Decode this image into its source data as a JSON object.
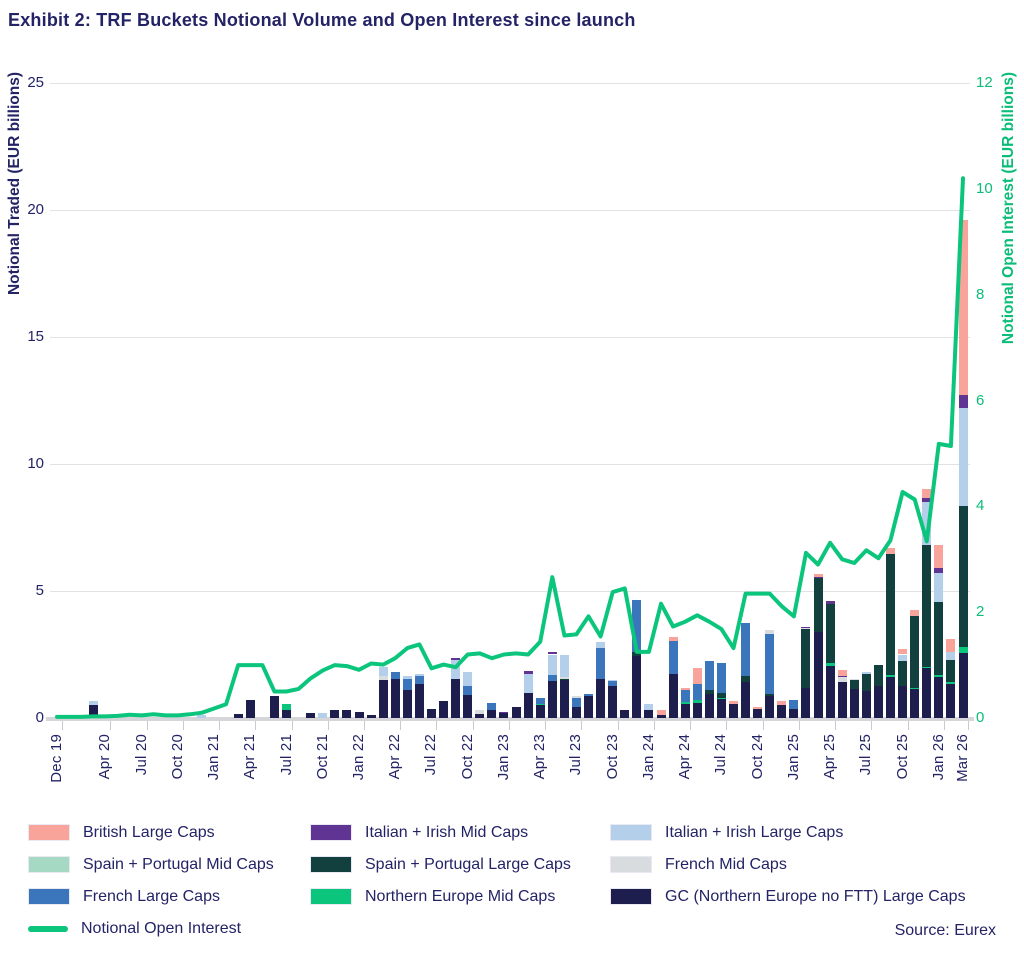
{
  "header": {
    "title": "Exhibit 2: TRF Buckets Notional Volume and Open Interest since launch"
  },
  "source_label": "Source: Eurex",
  "colors": {
    "british": "#F9A49A",
    "italian_irish_mid": "#5F3492",
    "italian_irish_large": "#B4CFE9",
    "spain_portugal_mid": "#A5D9C3",
    "spain_portugal_large": "#11403E",
    "french_mid": "#D9DCDF",
    "french_large": "#3B76BC",
    "northern_europe_mid": "#0BC57D",
    "gc_large": "#1D1D4E",
    "oi_line": "#0BC57D",
    "text_navy": "#232366",
    "text_green": "#0BBD79"
  },
  "chart_data": {
    "type": "bar",
    "subtype": "stacked-bar-with-line",
    "title": "Exhibit 2: TRF Buckets Notional Volume and Open Interest since launch",
    "ylabel_left": "Notional Traded (EUR billions)",
    "ylabel_right": "Notional Open Interest (EUR billions)",
    "ylim_left": [
      0,
      25
    ],
    "ylim_right": [
      0,
      12
    ],
    "yticks_left": [
      0,
      5,
      10,
      15,
      20,
      25
    ],
    "yticks_right": [
      0,
      2,
      4,
      6,
      8,
      10,
      12
    ],
    "grid": "horizontal",
    "legend_position": "bottom",
    "categories": [
      "Dec 19",
      "Jan 20",
      "Feb 20",
      "Mar 20",
      "Apr 20",
      "May 20",
      "Jun 20",
      "Jul 20",
      "Aug 20",
      "Sep 20",
      "Oct 20",
      "Nov 20",
      "Dec 20",
      "Jan 21",
      "Feb 21",
      "Mar 21",
      "Apr 21",
      "May 21",
      "Jun 21",
      "Jul 21",
      "Aug 21",
      "Sep 21",
      "Oct 21",
      "Nov 21",
      "Dec 21",
      "Jan 22",
      "Feb 22",
      "Mar 22",
      "Apr 22",
      "May 22",
      "Jun 22",
      "Jul 22",
      "Aug 22",
      "Sep 22",
      "Oct 22",
      "Nov 22",
      "Dec 22",
      "Jan 23",
      "Feb 23",
      "Mar 23",
      "Apr 23",
      "May 23",
      "Jun 23",
      "Jul 23",
      "Aug 23",
      "Sep 23",
      "Oct 23",
      "Nov 23",
      "Dec 23",
      "Jan 24",
      "Feb 24",
      "Mar 24",
      "Apr 24",
      "May 24",
      "Jun 24",
      "Jul 24",
      "Aug 24",
      "Sep 24",
      "Oct 24",
      "Nov 24",
      "Dec 24",
      "Jan 25",
      "Feb 25",
      "Mar 25",
      "Apr 25",
      "May 25",
      "Jun 25",
      "Jul 25",
      "Aug 25",
      "Sep 25",
      "Oct 25",
      "Nov 25",
      "Dec 25",
      "Jan 26",
      "Feb 26",
      "Mar 26"
    ],
    "xtick_indices": [
      0,
      4,
      7,
      10,
      13,
      16,
      19,
      22,
      25,
      28,
      31,
      34,
      37,
      40,
      43,
      46,
      49,
      52,
      55,
      58,
      61,
      64,
      67,
      70,
      73,
      75
    ],
    "stack_order": [
      "gc_large",
      "northern_europe_mid",
      "spain_portugal_large",
      "spain_portugal_mid",
      "french_large",
      "french_mid",
      "italian_irish_large",
      "italian_irish_mid",
      "british"
    ],
    "series": [
      {
        "name": "GC (Northern Europe no FTT) Large Caps",
        "key": "gc_large",
        "values": [
          0,
          0,
          0,
          0.5,
          0,
          0,
          0,
          0,
          0,
          0,
          0,
          0,
          0,
          0,
          0,
          0.15,
          0.7,
          0,
          0.85,
          0.3,
          0,
          0.2,
          0,
          0.3,
          0.3,
          0.25,
          0.1,
          1.5,
          1.55,
          1.1,
          1.35,
          0.35,
          0.65,
          1.55,
          0.9,
          0.15,
          0.3,
          0.2,
          0.45,
          1.0,
          0.5,
          1.45,
          1.5,
          0.45,
          0.85,
          1.55,
          1.25,
          0.3,
          2.45,
          0.3,
          0.1,
          1.75,
          0.55,
          0.6,
          0.95,
          0.75,
          0.55,
          1.4,
          0.35,
          0.85,
          0.5,
          0.35,
          1.2,
          3.4,
          2.05,
          1.4,
          1.15,
          1.05,
          1.25,
          1.6,
          1.25,
          1.15,
          1.95,
          1.6,
          1.35,
          2.55
        ]
      },
      {
        "name": "Northern Europe Mid Caps",
        "key": "northern_europe_mid",
        "values": [
          0,
          0,
          0,
          0,
          0,
          0,
          0,
          0,
          0,
          0,
          0,
          0,
          0,
          0,
          0,
          0,
          0,
          0,
          0,
          0.25,
          0,
          0,
          0,
          0,
          0,
          0,
          0,
          0,
          0,
          0,
          0,
          0,
          0,
          0,
          0,
          0,
          0,
          0,
          0,
          0,
          0.06,
          0,
          0,
          0,
          0,
          0,
          0,
          0,
          0,
          0,
          0,
          0,
          0.08,
          0.1,
          0,
          0.05,
          0,
          0,
          0,
          0,
          0,
          0,
          0,
          0,
          0.1,
          0,
          0,
          0,
          0,
          0.1,
          0,
          0.05,
          0.05,
          0.1,
          0.05,
          0.25
        ]
      },
      {
        "name": "Spain + Portugal Large Caps",
        "key": "spain_portugal_large",
        "values": [
          0,
          0,
          0,
          0,
          0,
          0,
          0,
          0,
          0,
          0,
          0,
          0,
          0,
          0,
          0,
          0,
          0,
          0,
          0,
          0,
          0,
          0,
          0,
          0,
          0,
          0,
          0,
          0,
          0,
          0,
          0,
          0,
          0,
          0,
          0,
          0,
          0,
          0,
          0,
          0,
          0,
          0,
          0.05,
          0,
          0,
          0,
          0,
          0,
          0.15,
          0,
          0,
          0,
          0,
          0,
          0.15,
          0.2,
          0,
          0.25,
          0,
          0.1,
          0,
          0,
          2.3,
          2.1,
          2.35,
          0,
          0.35,
          0.7,
          0.85,
          4.75,
          1.0,
          2.8,
          4.8,
          2.85,
          0.9,
          5.55
        ]
      },
      {
        "name": "Spain + Portugal Mid Caps",
        "key": "spain_portugal_mid",
        "values": [
          0,
          0,
          0,
          0,
          0,
          0,
          0,
          0,
          0,
          0,
          0,
          0,
          0,
          0,
          0,
          0,
          0,
          0,
          0,
          0,
          0,
          0,
          0,
          0,
          0,
          0,
          0,
          0,
          0,
          0,
          0,
          0,
          0,
          0,
          0,
          0,
          0,
          0,
          0,
          0,
          0,
          0,
          0,
          0,
          0,
          0,
          0,
          0,
          0,
          0,
          0,
          0,
          0,
          0,
          0,
          0,
          0,
          0,
          0,
          0,
          0,
          0,
          0,
          0,
          0,
          0,
          0,
          0,
          0,
          0,
          0,
          0,
          0,
          0,
          0,
          0
        ]
      },
      {
        "name": "French Large Caps",
        "key": "french_large",
        "values": [
          0,
          0,
          0,
          0,
          0,
          0,
          0,
          0,
          0,
          0,
          0,
          0,
          0,
          0,
          0,
          0,
          0,
          0,
          0,
          0,
          0,
          0,
          0,
          0,
          0,
          0,
          0,
          0,
          0.25,
          0.45,
          0.3,
          0,
          0,
          0,
          0.35,
          0,
          0.3,
          0,
          0,
          0,
          0.24,
          0.25,
          0,
          0.35,
          0.1,
          1.2,
          0.2,
          0,
          2.05,
          0,
          0,
          1.3,
          0.47,
          0.65,
          1.15,
          1.15,
          0,
          2.1,
          0,
          2.35,
          0,
          0.35,
          0,
          0,
          0,
          0,
          0,
          0,
          0,
          0,
          0,
          0,
          0,
          0,
          0,
          0
        ]
      },
      {
        "name": "French Mid Caps",
        "key": "french_mid",
        "values": [
          0,
          0,
          0,
          0,
          0,
          0,
          0,
          0,
          0,
          0,
          0,
          0,
          0,
          0,
          0,
          0,
          0,
          0,
          0,
          0,
          0,
          0,
          0,
          0,
          0,
          0,
          0,
          0.15,
          0,
          0,
          0,
          0,
          0,
          0,
          0,
          0.15,
          0,
          0,
          0,
          0,
          0,
          0,
          0.05,
          0.05,
          0,
          0,
          0,
          0,
          0,
          0,
          0,
          0,
          0,
          0,
          0,
          0,
          0,
          0,
          0,
          0.15,
          0,
          0,
          0.05,
          0,
          0,
          0.2,
          0.05,
          0,
          0,
          0,
          0,
          0,
          0,
          0,
          0,
          0
        ]
      },
      {
        "name": "Italian + Irish Large Caps",
        "key": "italian_irish_large",
        "values": [
          0,
          0,
          0,
          0.15,
          0,
          0,
          0,
          0,
          0,
          0,
          0,
          0,
          0.1,
          0,
          0,
          0,
          0,
          0,
          0,
          0,
          0,
          0,
          0.2,
          0,
          0,
          0,
          0,
          0.35,
          0,
          0.1,
          0.1,
          0,
          0,
          0.75,
          0.55,
          0,
          0,
          0,
          0,
          0.75,
          0,
          0.8,
          0.9,
          0,
          0,
          0.25,
          0.05,
          0,
          0,
          0.25,
          0,
          0,
          0,
          0,
          0,
          0,
          0,
          0,
          0,
          0,
          0,
          0,
          0,
          0,
          0,
          0,
          0,
          0.05,
          0,
          0,
          0.25,
          0,
          1.7,
          1.15,
          0.3,
          3.85
        ]
      },
      {
        "name": "Italian + Irish Mid Caps",
        "key": "italian_irish_mid",
        "values": [
          0,
          0,
          0,
          0,
          0,
          0,
          0,
          0,
          0,
          0,
          0,
          0,
          0,
          0,
          0,
          0,
          0,
          0,
          0,
          0,
          0,
          0,
          0,
          0,
          0,
          0,
          0,
          0,
          0,
          0,
          0,
          0,
          0,
          0.05,
          0,
          0,
          0,
          0.05,
          0,
          0.1,
          0,
          0.1,
          0,
          0,
          0,
          0,
          0,
          0,
          0,
          0,
          0,
          0,
          0,
          0,
          0,
          0,
          0,
          0,
          0,
          0,
          0,
          0,
          0.05,
          0.05,
          0.1,
          0.05,
          0,
          0,
          0,
          0,
          0,
          0,
          0.15,
          0.2,
          0,
          0.5
        ]
      },
      {
        "name": "British Large Caps",
        "key": "british",
        "values": [
          0,
          0,
          0,
          0,
          0,
          0,
          0,
          0,
          0,
          0,
          0,
          0,
          0,
          0,
          0,
          0,
          0,
          0,
          0,
          0,
          0,
          0,
          0,
          0,
          0,
          0,
          0,
          0,
          0,
          0,
          0,
          0,
          0,
          0,
          0,
          0,
          0,
          0,
          0,
          0,
          0,
          0,
          0,
          0,
          0,
          0,
          0,
          0,
          0,
          0,
          0.2,
          0.15,
          0.1,
          0.6,
          0,
          0,
          0.1,
          0,
          0.1,
          0,
          0.15,
          0,
          0,
          0.1,
          0,
          0.25,
          0,
          0,
          0,
          0.25,
          0.2,
          0.25,
          0.35,
          0.9,
          0.5,
          6.9
        ]
      }
    ],
    "line_series": {
      "name": "Notional Open Interest",
      "axis": "right",
      "values": [
        0.02,
        0.02,
        0.02,
        0.03,
        0.03,
        0.04,
        0.06,
        0.05,
        0.07,
        0.05,
        0.05,
        0.07,
        0.1,
        0.18,
        0.26,
        1.0,
        1.0,
        1.0,
        0.5,
        0.5,
        0.55,
        0.75,
        0.9,
        1.0,
        0.98,
        0.91,
        1.03,
        1.01,
        1.13,
        1.32,
        1.39,
        0.94,
        1.01,
        0.96,
        1.2,
        1.22,
        1.13,
        1.2,
        1.22,
        1.2,
        1.44,
        2.66,
        1.56,
        1.58,
        1.92,
        1.54,
        2.38,
        2.45,
        1.25,
        1.25,
        2.16,
        1.73,
        1.82,
        1.94,
        1.82,
        1.68,
        1.32,
        2.35,
        2.35,
        2.35,
        2.11,
        1.92,
        3.12,
        2.9,
        3.31,
        3.0,
        2.93,
        3.17,
        3.02,
        3.36,
        4.27,
        4.13,
        3.34,
        5.18,
        5.14,
        10.2
      ]
    }
  },
  "legend": {
    "items": [
      {
        "label": "British Large Caps",
        "key": "british",
        "type": "box"
      },
      {
        "label": "Italian + Irish Mid Caps",
        "key": "italian_irish_mid",
        "type": "box"
      },
      {
        "label": "Italian + Irish Large Caps",
        "key": "italian_irish_large",
        "type": "box"
      },
      {
        "label": "Spain + Portugal Mid Caps",
        "key": "spain_portugal_mid",
        "type": "box"
      },
      {
        "label": "Spain + Portugal Large Caps",
        "key": "spain_portugal_large",
        "type": "box"
      },
      {
        "label": "French Mid Caps",
        "key": "french_mid",
        "type": "box"
      },
      {
        "label": "French Large Caps",
        "key": "french_large",
        "type": "box"
      },
      {
        "label": "Northern Europe Mid Caps",
        "key": "northern_europe_mid",
        "type": "box"
      },
      {
        "label": "GC (Northern Europe no FTT) Large Caps",
        "key": "gc_large",
        "type": "box"
      },
      {
        "label": "Notional Open Interest",
        "key": "oi_line",
        "type": "line"
      }
    ]
  }
}
